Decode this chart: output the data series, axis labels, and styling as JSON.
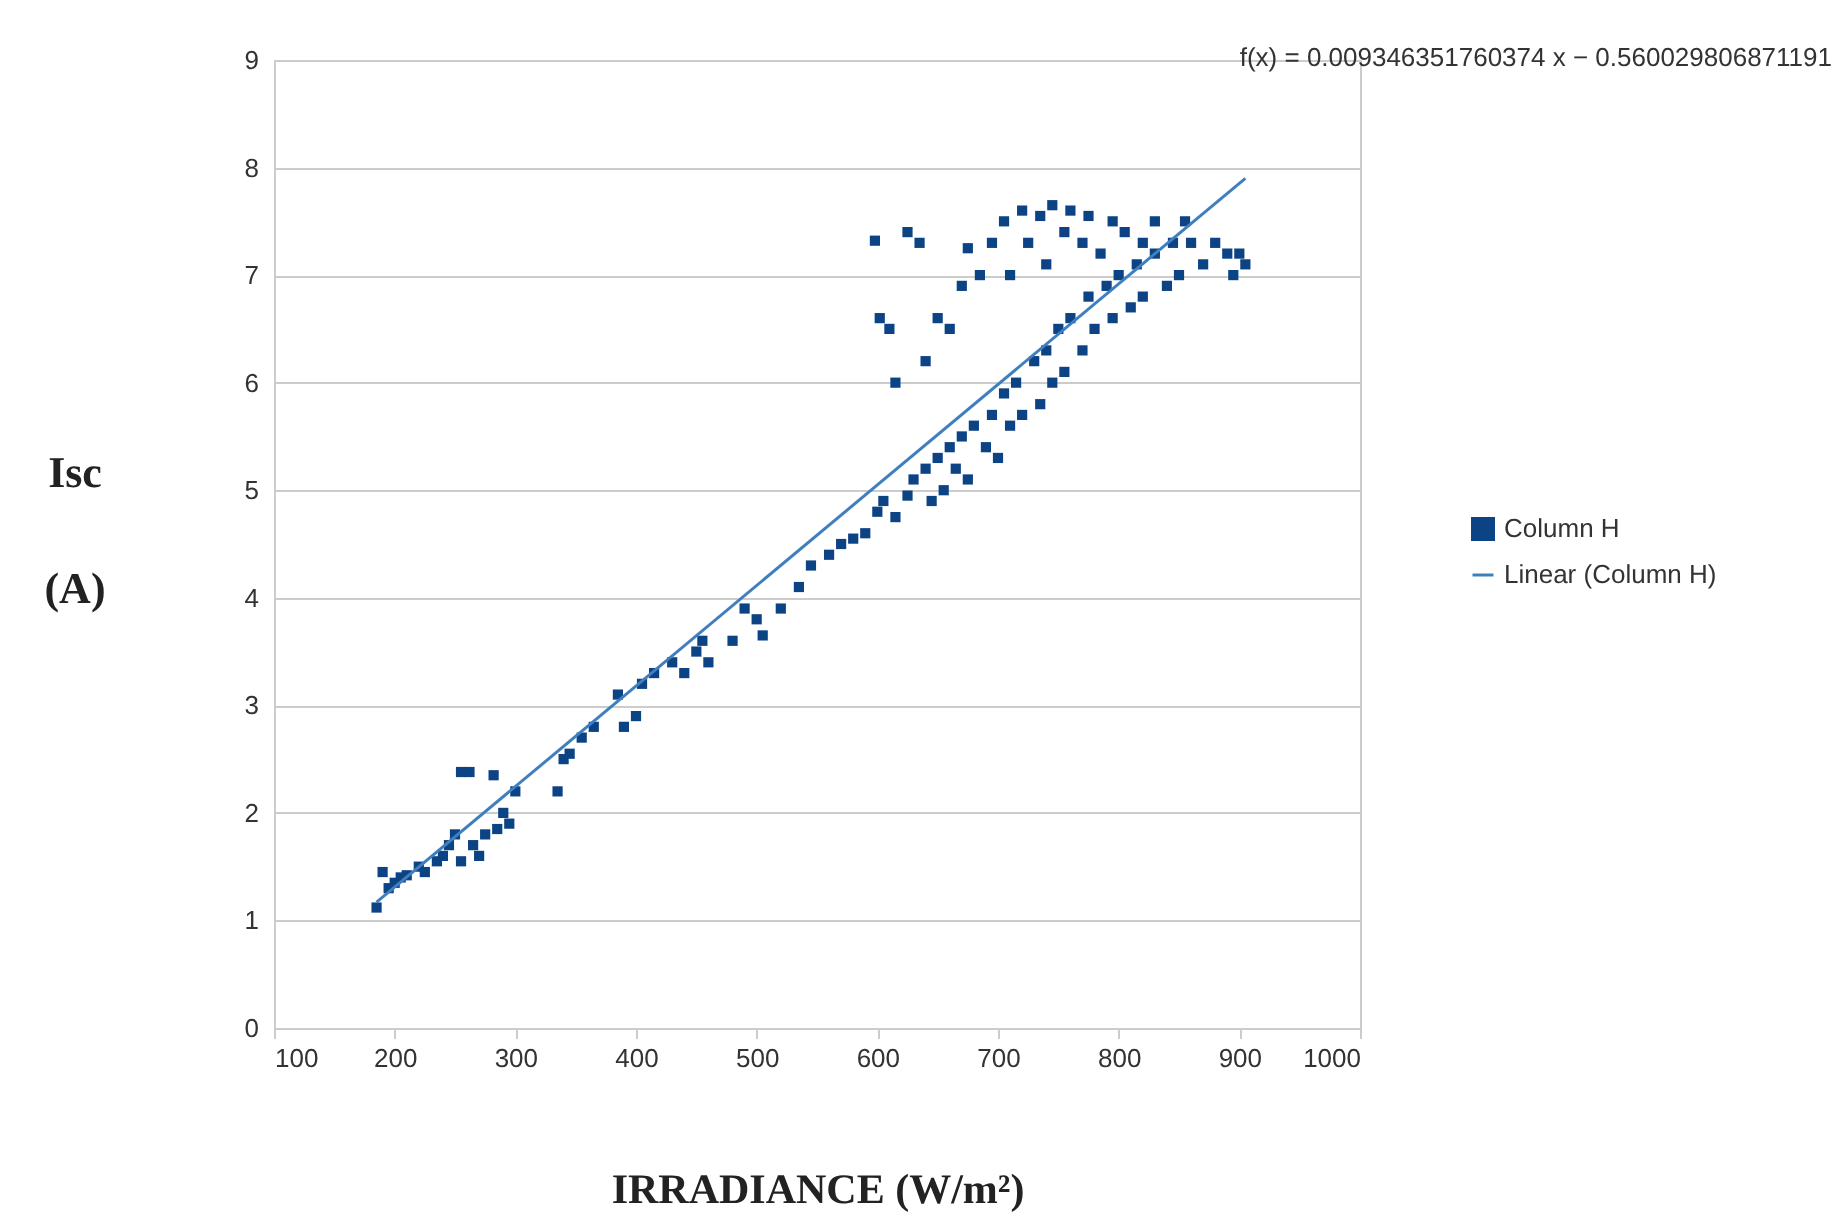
{
  "chart_data": {
    "type": "scatter",
    "xlabel": "IRRADIANCE (W/m²)",
    "ylabel": "Isc (A)",
    "annotations": [
      "f(x) = 0.009346351760374 x − 0.560029806871191"
    ],
    "xlim": [
      100,
      1000
    ],
    "xticks": [
      100,
      200,
      300,
      400,
      500,
      600,
      700,
      800,
      900,
      1000
    ],
    "ylim": [
      0,
      9
    ],
    "yticks": [
      0,
      1,
      2,
      3,
      4,
      5,
      6,
      7,
      8,
      9
    ],
    "grid": "y",
    "legend": "right",
    "series": [
      {
        "name": "Column H",
        "color": "#0b4384",
        "marker": "square",
        "x": [
          185,
          190,
          195,
          200,
          205,
          210,
          220,
          225,
          235,
          240,
          245,
          250,
          255,
          255,
          262,
          265,
          270,
          275,
          282,
          285,
          290,
          295,
          300,
          335,
          340,
          345,
          355,
          365,
          385,
          390,
          400,
          405,
          415,
          430,
          440,
          450,
          455,
          460,
          480,
          490,
          500,
          505,
          520,
          535,
          545,
          560,
          570,
          580,
          590,
          600,
          605,
          615,
          625,
          630,
          640,
          645,
          650,
          655,
          660,
          665,
          670,
          675,
          680,
          690,
          695,
          700,
          705,
          710,
          715,
          720,
          730,
          735,
          740,
          745,
          750,
          755,
          760,
          770,
          775,
          780,
          790,
          795,
          800,
          810,
          815,
          820,
          830,
          840,
          850,
          860,
          870,
          880,
          890,
          895,
          900,
          905,
          598,
          602,
          610,
          615,
          625,
          635,
          640,
          650,
          660,
          670,
          675,
          685,
          695,
          705,
          710,
          720,
          725,
          735,
          740,
          745,
          755,
          760,
          770,
          775,
          785,
          795,
          805,
          820,
          830,
          845,
          855
        ],
        "values": [
          1.12,
          1.45,
          1.3,
          1.35,
          1.4,
          1.42,
          1.5,
          1.45,
          1.55,
          1.6,
          1.7,
          1.8,
          1.55,
          2.38,
          2.38,
          1.7,
          1.6,
          1.8,
          2.35,
          1.85,
          2.0,
          1.9,
          2.2,
          2.2,
          2.5,
          2.55,
          2.7,
          2.8,
          3.1,
          2.8,
          2.9,
          3.2,
          3.3,
          3.4,
          3.3,
          3.5,
          3.6,
          3.4,
          3.6,
          3.9,
          3.8,
          3.65,
          3.9,
          4.1,
          4.3,
          4.4,
          4.5,
          4.55,
          4.6,
          4.8,
          4.9,
          4.75,
          4.95,
          5.1,
          5.2,
          4.9,
          5.3,
          5.0,
          5.4,
          5.2,
          5.5,
          5.1,
          5.6,
          5.4,
          5.7,
          5.3,
          5.9,
          5.6,
          6.0,
          5.7,
          6.2,
          5.8,
          6.3,
          6.0,
          6.5,
          6.1,
          6.6,
          6.3,
          6.8,
          6.5,
          6.9,
          6.6,
          7.0,
          6.7,
          7.1,
          6.8,
          7.2,
          6.9,
          7.0,
          7.3,
          7.1,
          7.3,
          7.2,
          7.0,
          7.2,
          7.1,
          7.32,
          6.6,
          6.5,
          6.0,
          7.4,
          7.3,
          6.2,
          6.6,
          6.5,
          6.9,
          7.25,
          7.0,
          7.3,
          7.5,
          7.0,
          7.6,
          7.3,
          7.55,
          7.1,
          7.65,
          7.4,
          7.6,
          7.3,
          7.55,
          7.2,
          7.5,
          7.4,
          7.3,
          7.5,
          7.3,
          7.5
        ]
      },
      {
        "name": "Linear (Column H)",
        "color": "#3f7fbf",
        "type": "line",
        "x": [
          185,
          905
        ],
        "values": [
          1.17,
          7.9
        ]
      }
    ]
  }
}
